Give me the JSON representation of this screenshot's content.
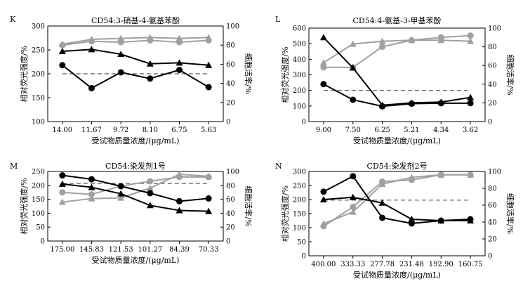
{
  "chart_data": [
    {
      "type": "line",
      "panel_label": "K",
      "title": "CD54:3-硝基-4-氨基苯酚",
      "xlabel": "受试物质量浓度/(μg/mL)",
      "ylabel": "相对荧光强度/%",
      "y2label": "细胞活率/%",
      "categories": [
        "14.00",
        "11.67",
        "9.72",
        "8.10",
        "6.75",
        "5.63"
      ],
      "ylim": [
        100,
        300
      ],
      "yticks": [
        "100",
        "150",
        "200",
        "250",
        "300"
      ],
      "y2lim": [
        0,
        100
      ],
      "y2ticks": [
        "0",
        "20",
        "40",
        "60",
        "80",
        "100"
      ],
      "threshold": 200,
      "series": [
        {
          "name": "viability-circle",
          "axis": "right",
          "color": "#a0a0a0",
          "marker": "circle",
          "values": [
            80,
            84,
            83,
            85,
            83,
            85
          ]
        },
        {
          "name": "viability-triangle",
          "axis": "right",
          "color": "#a0a0a0",
          "marker": "triangle",
          "values": [
            81,
            86,
            87,
            88,
            87,
            88
          ]
        },
        {
          "name": "rfi-triangle",
          "axis": "left",
          "color": "#000000",
          "marker": "triangle",
          "values": [
            247,
            251,
            241,
            221,
            223,
            218
          ]
        },
        {
          "name": "rfi-circle",
          "axis": "left",
          "color": "#000000",
          "marker": "circle",
          "values": [
            218,
            170,
            203,
            190,
            208,
            172
          ]
        }
      ]
    },
    {
      "type": "line",
      "panel_label": "L",
      "title": "CD54:4-氨基-3-甲基苯酚",
      "xlabel": "受试物质量浓度/(μg/mL)",
      "ylabel": "相对荧光强度/%",
      "y2label": "细胞活率/%",
      "categories": [
        "9.00",
        "7.50",
        "6.25",
        "5.21",
        "4.34",
        "3.62"
      ],
      "ylim": [
        0,
        600
      ],
      "yticks": [
        "0",
        "100",
        "200",
        "300",
        "400",
        "500",
        "600"
      ],
      "y2lim": [
        0,
        100
      ],
      "y2ticks": [
        "0",
        "20",
        "40",
        "60",
        "80",
        "100"
      ],
      "threshold": 200,
      "series": [
        {
          "name": "viability-circle",
          "axis": "right",
          "color": "#a0a0a0",
          "marker": "circle",
          "values": [
            58,
            58,
            80,
            87,
            90,
            92
          ]
        },
        {
          "name": "viability-triangle",
          "axis": "right",
          "color": "#a0a0a0",
          "marker": "triangle",
          "values": [
            63,
            83,
            86,
            87,
            87,
            86
          ]
        },
        {
          "name": "rfi-triangle",
          "axis": "left",
          "color": "#000000",
          "marker": "triangle",
          "values": [
            540,
            345,
            105,
            120,
            125,
            155
          ]
        },
        {
          "name": "rfi-circle",
          "axis": "left",
          "color": "#000000",
          "marker": "circle",
          "values": [
            240,
            140,
            98,
            115,
            118,
            118
          ]
        }
      ]
    },
    {
      "type": "line",
      "panel_label": "M",
      "title": "CD54:染发剂1号",
      "xlabel": "受试物质量浓度/(μg/mL)",
      "ylabel": "相对荧光强度/%",
      "y2label": "细胞活率/%",
      "categories": [
        "175.00",
        "145.83",
        "121.53",
        "101.27",
        "84.39",
        "70.33"
      ],
      "ylim": [
        0,
        250
      ],
      "yticks": [
        "0",
        "50",
        "100",
        "150",
        "200",
        "250"
      ],
      "y2lim": [
        0,
        100
      ],
      "y2ticks": [
        "0",
        "20",
        "40",
        "60",
        "80",
        "100"
      ],
      "threshold": 207,
      "series": [
        {
          "name": "viability-circle",
          "axis": "right",
          "color": "#a0a0a0",
          "marker": "circle",
          "values": [
            70,
            67,
            79,
            86,
            92,
            92
          ]
        },
        {
          "name": "viability-triangle",
          "axis": "right",
          "color": "#a0a0a0",
          "marker": "triangle",
          "values": [
            56,
            61,
            62,
            76,
            96,
            93
          ]
        },
        {
          "name": "rfi-triangle",
          "axis": "left",
          "color": "#000000",
          "marker": "triangle",
          "values": [
            205,
            193,
            170,
            128,
            110,
            107
          ]
        },
        {
          "name": "rfi-circle",
          "axis": "left",
          "color": "#000000",
          "marker": "circle",
          "values": [
            236,
            222,
            197,
            172,
            143,
            153
          ]
        }
      ]
    },
    {
      "type": "line",
      "panel_label": "N",
      "title": "CD54:染发剂2号",
      "xlabel": "受试物质量浓度/(μg/mL)",
      "ylabel": "相对荧光强度/%",
      "y2label": "细胞活率/%",
      "categories": [
        "400.00",
        "333.33",
        "277.78",
        "231.48",
        "192.90",
        "160.75"
      ],
      "ylim": [
        0,
        300
      ],
      "yticks": [
        "0",
        "50",
        "100",
        "150",
        "200",
        "250",
        "300"
      ],
      "y2lim": [
        0,
        100
      ],
      "y2ticks": [
        "0",
        "20",
        "40",
        "60",
        "80",
        "100"
      ],
      "threshold": 198,
      "series": [
        {
          "name": "viability-circle",
          "axis": "right",
          "color": "#a0a0a0",
          "marker": "circle",
          "values": [
            35,
            58,
            88,
            90,
            96,
            96
          ]
        },
        {
          "name": "viability-triangle",
          "axis": "right",
          "color": "#a0a0a0",
          "marker": "triangle",
          "values": [
            38,
            52,
            85,
            93,
            96,
            96
          ]
        },
        {
          "name": "rfi-triangle",
          "axis": "left",
          "color": "#000000",
          "marker": "triangle",
          "values": [
            200,
            208,
            188,
            130,
            125,
            125
          ]
        },
        {
          "name": "rfi-circle",
          "axis": "left",
          "color": "#000000",
          "marker": "circle",
          "values": [
            228,
            283,
            135,
            115,
            125,
            130
          ]
        }
      ]
    }
  ]
}
